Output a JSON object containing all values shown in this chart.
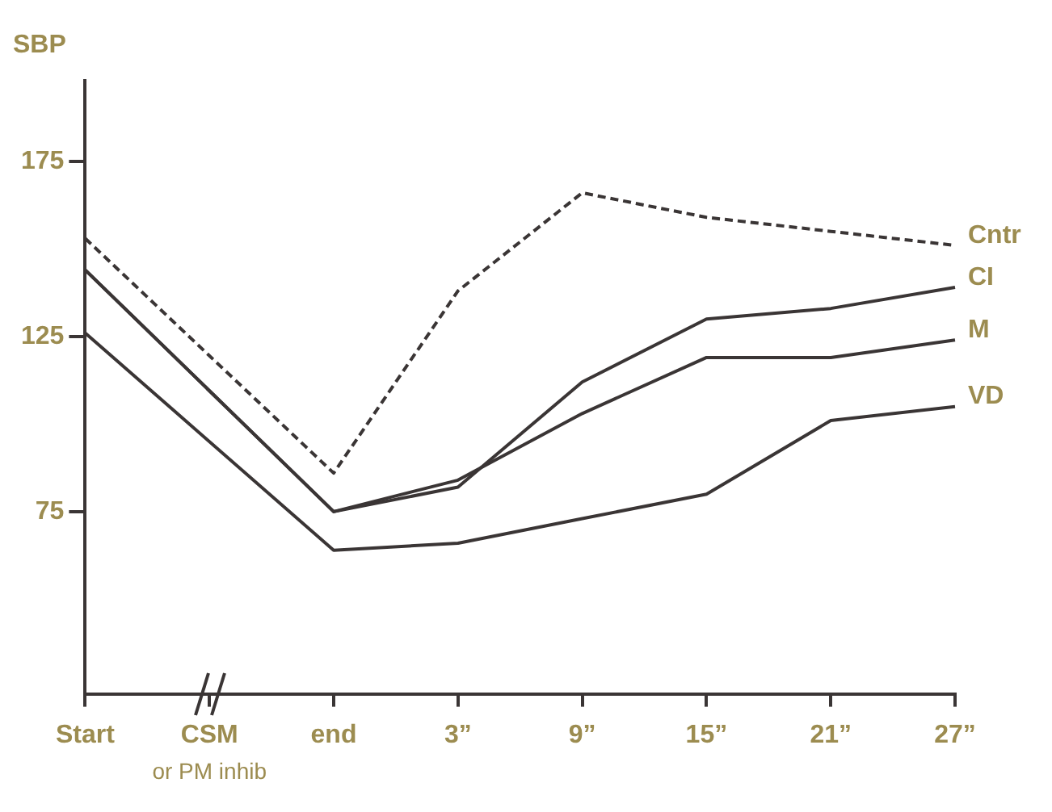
{
  "chart_data": {
    "type": "line",
    "ylabel": "SBP",
    "categories": [
      "Start",
      "CSM",
      "end",
      "3”",
      "9”",
      "15”",
      "21”",
      "27”"
    ],
    "ylim": [
      23,
      198
    ],
    "yticks": [
      75,
      125,
      175
    ],
    "grid": false,
    "legend": false,
    "marker": "none",
    "line_style": "solid",
    "annotations": [
      "or PM inhib"
    ],
    "series": [
      {
        "name": "Cntr",
        "color": "#3a3535",
        "line_style": "dashed",
        "values": [
          153,
          null,
          86,
          138,
          166,
          159,
          155,
          151
        ]
      },
      {
        "name": "CI",
        "color": "#3a3535",
        "values": [
          144,
          null,
          75,
          82,
          112,
          130,
          133,
          139
        ]
      },
      {
        "name": "M",
        "color": "#3a3535",
        "values": [
          144,
          null,
          75,
          84,
          103,
          119,
          119,
          124
        ]
      },
      {
        "name": "VD",
        "color": "#3a3535",
        "values": [
          126,
          null,
          64,
          66,
          73,
          80,
          101,
          105
        ]
      }
    ]
  }
}
